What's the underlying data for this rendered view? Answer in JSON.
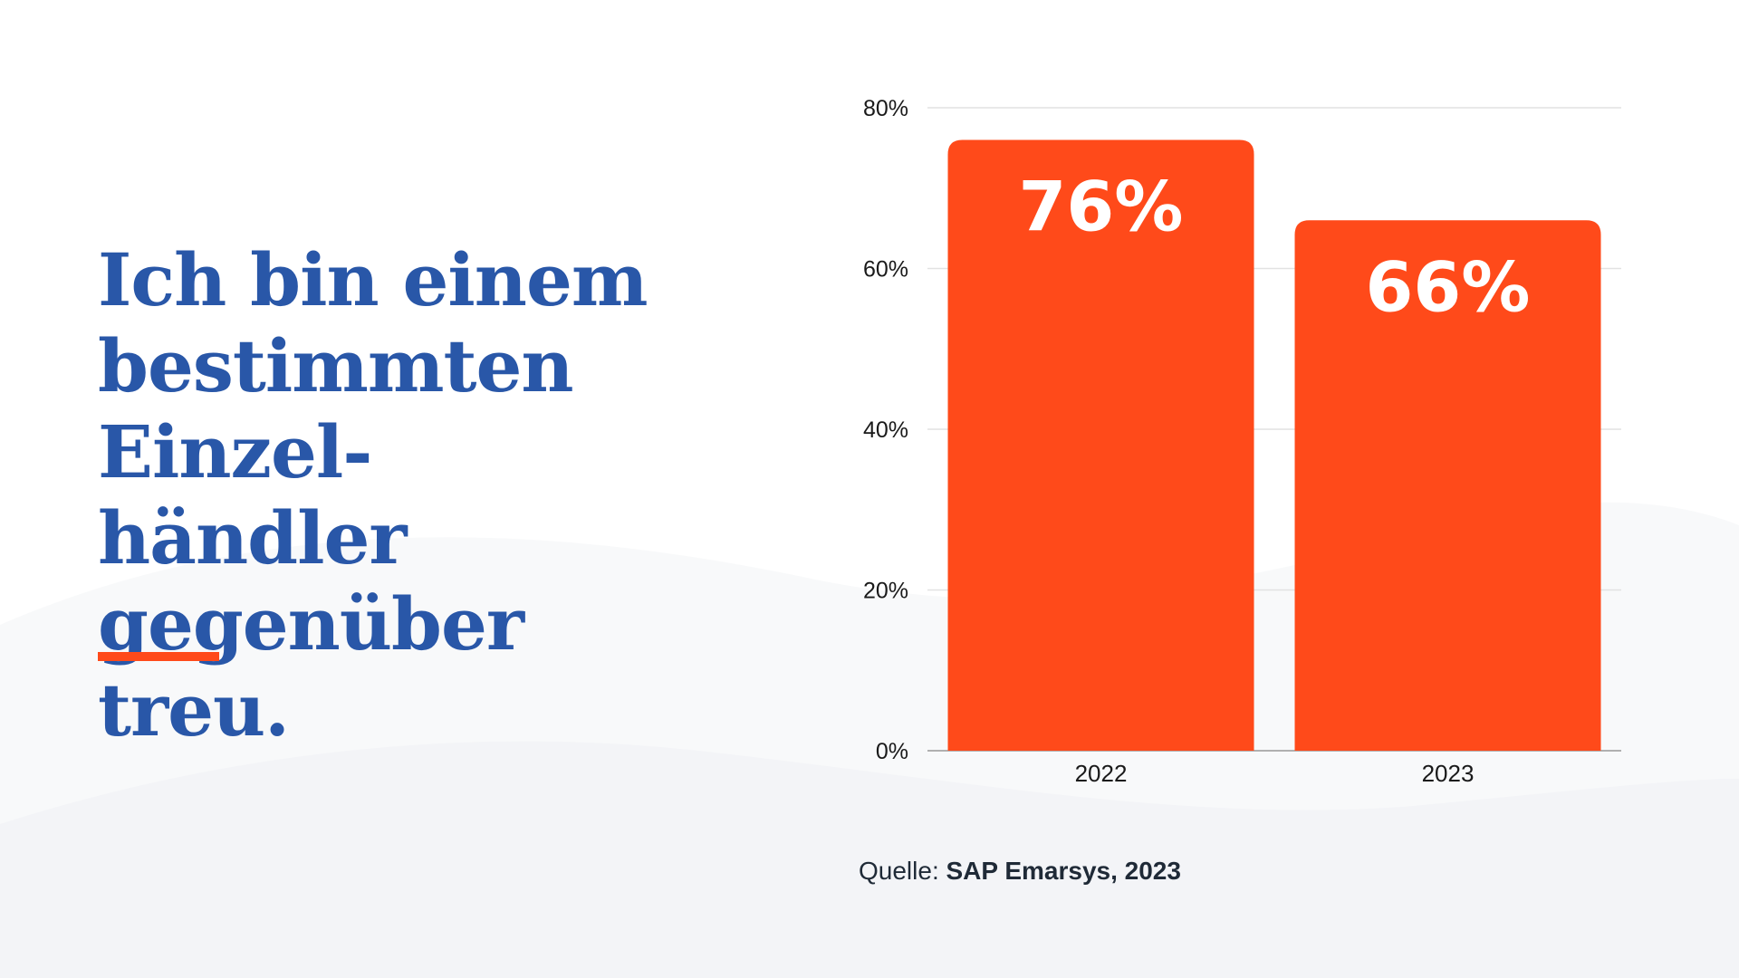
{
  "headline": "Ich bin einem\nbestimmten Einzel-\nhändler gegenüber\ntreu.",
  "source": {
    "prefix": "Quelle:",
    "name": "SAP Emarsys, 2023"
  },
  "colors": {
    "bar": "#ff4a1a",
    "headline": "#2957a8",
    "accent": "#ff4a1a",
    "wave": "#f6f7f9"
  },
  "chart_data": {
    "type": "bar",
    "categories": [
      "2022",
      "2023"
    ],
    "values": [
      76,
      66
    ],
    "data_labels": [
      "76%",
      "66%"
    ],
    "ylim": [
      0,
      80
    ],
    "yticks": [
      0,
      20,
      40,
      60,
      80
    ],
    "ytick_labels": [
      "0%",
      "20%",
      "40%",
      "60%",
      "80%"
    ],
    "title": "",
    "xlabel": "",
    "ylabel": "",
    "grid": true,
    "legend": "none"
  }
}
